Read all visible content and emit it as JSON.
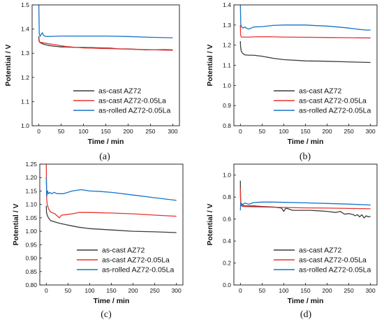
{
  "chart_data": [
    {
      "type": "line",
      "panel_label": "(a)",
      "xlabel": "Time / min",
      "ylabel": "Potential / V",
      "xlim": [
        -15,
        315
      ],
      "ylim": [
        1.0,
        1.5
      ],
      "xticks": [
        0,
        50,
        100,
        150,
        200,
        250,
        300
      ],
      "yticks": [
        1.0,
        1.1,
        1.2,
        1.3,
        1.4,
        1.5
      ],
      "ytick_decimals": 1,
      "legend_position": "lower-center",
      "series": [
        {
          "name": "as-cast  AZ72",
          "color": "#3c3c3c",
          "x": [
            0,
            0.5,
            2,
            5,
            10,
            20,
            30,
            40,
            50,
            60,
            80,
            100,
            120,
            140,
            160,
            180,
            200,
            220,
            240,
            260,
            280,
            300
          ],
          "y": [
            1.37,
            1.355,
            1.345,
            1.342,
            1.338,
            1.333,
            1.33,
            1.328,
            1.326,
            1.326,
            1.324,
            1.324,
            1.323,
            1.322,
            1.321,
            1.318,
            1.318,
            1.316,
            1.314,
            1.314,
            1.315,
            1.314
          ]
        },
        {
          "name": "as-cast AZ72-0.05La",
          "color": "#e8322e",
          "x": [
            0,
            0.5,
            2,
            5,
            10,
            20,
            30,
            40,
            50,
            60,
            80,
            100,
            120,
            140,
            160,
            180,
            200,
            220,
            240,
            260,
            280,
            300
          ],
          "y": [
            1.36,
            1.35,
            1.345,
            1.345,
            1.343,
            1.34,
            1.337,
            1.334,
            1.331,
            1.328,
            1.325,
            1.322,
            1.321,
            1.32,
            1.319,
            1.318,
            1.317,
            1.316,
            1.315,
            1.314,
            1.313,
            1.312
          ]
        },
        {
          "name": "as-rolled AZ72-0.05La",
          "color": "#1673c8",
          "x": [
            0,
            0.5,
            1,
            3,
            6,
            8,
            10,
            15,
            20,
            30,
            50,
            100,
            150,
            200,
            250,
            300
          ],
          "y": [
            1.5,
            1.45,
            1.38,
            1.37,
            1.38,
            1.385,
            1.375,
            1.37,
            1.369,
            1.37,
            1.371,
            1.371,
            1.371,
            1.369,
            1.366,
            1.364
          ]
        }
      ]
    },
    {
      "type": "line",
      "panel_label": "(b)",
      "xlabel": "Time / min",
      "ylabel": "Potential / V",
      "xlim": [
        -15,
        315
      ],
      "ylim": [
        0.8,
        1.4
      ],
      "xticks": [
        0,
        50,
        100,
        150,
        200,
        250,
        300
      ],
      "yticks": [
        0.8,
        0.9,
        1.0,
        1.1,
        1.2,
        1.3,
        1.4
      ],
      "ytick_decimals": 1,
      "legend_position": "lower-center",
      "series": [
        {
          "name": "as-cast  AZ72",
          "color": "#3c3c3c",
          "x": [
            0,
            0.5,
            2,
            5,
            10,
            20,
            30,
            50,
            75,
            100,
            150,
            200,
            250,
            300
          ],
          "y": [
            1.22,
            1.19,
            1.17,
            1.16,
            1.152,
            1.15,
            1.15,
            1.145,
            1.135,
            1.128,
            1.122,
            1.12,
            1.117,
            1.114
          ]
        },
        {
          "name": "as-cast AZ72-0.05La",
          "color": "#e8322e",
          "x": [
            0,
            0.5,
            2,
            5,
            10,
            20,
            40,
            70,
            100,
            150,
            200,
            250,
            300
          ],
          "y": [
            1.3,
            1.25,
            1.24,
            1.24,
            1.24,
            1.24,
            1.242,
            1.242,
            1.24,
            1.239,
            1.238,
            1.237,
            1.236
          ]
        },
        {
          "name": "as-rolled AZ72-0.05La",
          "color": "#1673c8",
          "x": [
            0,
            0.5,
            1,
            3,
            6,
            10,
            15,
            20,
            25,
            30,
            50,
            75,
            100,
            125,
            150,
            175,
            200,
            225,
            250,
            275,
            290,
            300
          ],
          "y": [
            1.4,
            1.35,
            1.3,
            1.29,
            1.285,
            1.29,
            1.283,
            1.28,
            1.285,
            1.29,
            1.292,
            1.298,
            1.3,
            1.3,
            1.3,
            1.297,
            1.295,
            1.29,
            1.285,
            1.278,
            1.275,
            1.275
          ]
        }
      ]
    },
    {
      "type": "line",
      "panel_label": "(c)",
      "xlabel": "Time / min",
      "ylabel": "Potential / V",
      "xlim": [
        -15,
        315
      ],
      "ylim": [
        0.8,
        1.25
      ],
      "xticks": [
        0,
        50,
        100,
        150,
        200,
        250,
        300
      ],
      "yticks": [
        0.8,
        0.85,
        0.9,
        0.95,
        1.0,
        1.05,
        1.1,
        1.15,
        1.2,
        1.25
      ],
      "ytick_decimals": 2,
      "legend_position": "lower-center",
      "series": [
        {
          "name": "as-cast  AZ72",
          "color": "#3c3c3c",
          "x": [
            0,
            0.5,
            2,
            5,
            10,
            20,
            30,
            50,
            75,
            100,
            150,
            200,
            250,
            300
          ],
          "y": [
            1.095,
            1.07,
            1.06,
            1.05,
            1.04,
            1.035,
            1.03,
            1.023,
            1.015,
            1.01,
            1.005,
            1.0,
            0.998,
            0.995
          ]
        },
        {
          "name": "as-cast AZ72-0.05La",
          "color": "#e8322e",
          "x": [
            0,
            0.3,
            1,
            2,
            5,
            8,
            12,
            20,
            30,
            35,
            45,
            60,
            75,
            100,
            150,
            200,
            250,
            300
          ],
          "y": [
            1.25,
            1.2,
            1.12,
            1.1,
            1.085,
            1.075,
            1.07,
            1.065,
            1.05,
            1.06,
            1.062,
            1.065,
            1.07,
            1.07,
            1.068,
            1.065,
            1.06,
            1.056
          ]
        },
        {
          "name": "as-rolled AZ72-0.05La",
          "color": "#1673c8",
          "x": [
            0,
            0.5,
            1,
            3,
            5,
            8,
            12,
            18,
            25,
            40,
            60,
            80,
            100,
            125,
            150,
            200,
            250,
            300
          ],
          "y": [
            1.2,
            1.16,
            1.13,
            1.15,
            1.14,
            1.145,
            1.14,
            1.145,
            1.14,
            1.14,
            1.15,
            1.155,
            1.15,
            1.148,
            1.145,
            1.135,
            1.125,
            1.115
          ]
        }
      ]
    },
    {
      "type": "line",
      "panel_label": "(d)",
      "xlabel": "Time / min",
      "ylabel": "Potential / V",
      "xlim": [
        -15,
        315
      ],
      "ylim": [
        0.0,
        1.1
      ],
      "xticks": [
        0,
        50,
        100,
        150,
        200,
        250,
        300
      ],
      "yticks": [
        0.0,
        0.2,
        0.4,
        0.6,
        0.8,
        1.0
      ],
      "ytick_decimals": 1,
      "legend_position": "lower-center",
      "series": [
        {
          "name": "as-cast  AZ72",
          "color": "#3c3c3c",
          "x": [
            0,
            0.3,
            1,
            2,
            4,
            8,
            15,
            30,
            50,
            75,
            95,
            100,
            105,
            120,
            140,
            160,
            180,
            200,
            220,
            230,
            240,
            250,
            260,
            265,
            270,
            275,
            280,
            285,
            290,
            295,
            300
          ],
          "y": [
            0.95,
            0.8,
            0.72,
            0.74,
            0.73,
            0.72,
            0.72,
            0.72,
            0.715,
            0.71,
            0.7,
            0.67,
            0.7,
            0.68,
            0.68,
            0.68,
            0.675,
            0.67,
            0.66,
            0.67,
            0.645,
            0.65,
            0.64,
            0.63,
            0.64,
            0.62,
            0.64,
            0.61,
            0.63,
            0.62,
            0.625
          ]
        },
        {
          "name": "as-cast AZ72-0.05La",
          "color": "#e8322e",
          "x": [
            0,
            0.3,
            1,
            3,
            6,
            12,
            20,
            50,
            100,
            150,
            200,
            250,
            300
          ],
          "y": [
            0.88,
            0.8,
            0.74,
            0.72,
            0.715,
            0.714,
            0.713,
            0.71,
            0.706,
            0.702,
            0.7,
            0.697,
            0.694
          ]
        },
        {
          "name": "as-rolled AZ72-0.05La",
          "color": "#1673c8",
          "x": [
            0,
            0.5,
            1,
            3,
            5,
            10,
            20,
            30,
            40,
            50,
            75,
            100,
            150,
            200,
            250,
            300
          ],
          "y": [
            0.68,
            0.72,
            0.75,
            0.74,
            0.73,
            0.745,
            0.735,
            0.75,
            0.752,
            0.755,
            0.755,
            0.752,
            0.748,
            0.742,
            0.736,
            0.728
          ]
        }
      ]
    }
  ]
}
